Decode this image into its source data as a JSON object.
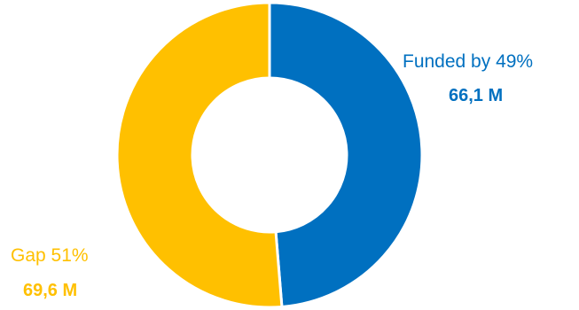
{
  "chart_data": {
    "type": "pie",
    "donut": true,
    "slices": [
      {
        "name": "Funded by 49%",
        "value_label": "66,1 M",
        "value": 66.1,
        "color": "#0070C0"
      },
      {
        "name": "Gap 51%",
        "value_label": "69,6 M",
        "value": 69.6,
        "color": "#FFC000"
      }
    ],
    "start_angle_deg": 0,
    "direction": "clockwise",
    "legend": "none"
  }
}
